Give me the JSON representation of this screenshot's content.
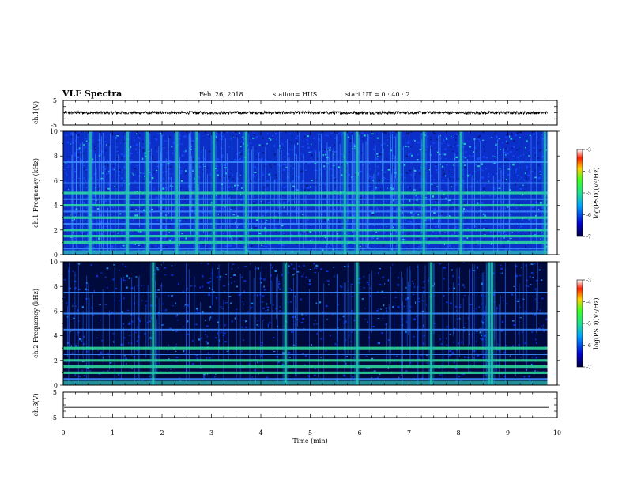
{
  "header": {
    "title": "VLF Spectra",
    "date": "Feb. 26, 2018",
    "station": "station= HUS",
    "start_ut": "start  UT  =   0 : 40 : 2"
  },
  "colors": {
    "background_dark": "#000030",
    "noise_blue": "#0a2fd0",
    "line_green": "#22e08a",
    "frame": "#000000"
  },
  "chart_data": [
    {
      "type": "line",
      "name": "ch.1 waveform",
      "ylabel": "ch.1(V)",
      "ylim": [
        -5,
        5
      ],
      "yticks": [
        "5",
        "-5"
      ],
      "xlim": [
        0,
        10
      ],
      "trace_level": 0,
      "noise_amplitude": 0.6,
      "trace_end_min": 9.8
    },
    {
      "type": "heatmap",
      "name": "ch.1 spectrogram",
      "ylabel": "ch.1 Frequency (kHz)",
      "ylim": [
        0,
        10
      ],
      "yticks": [
        "0",
        "2",
        "4",
        "6",
        "8",
        "10"
      ],
      "xlim": [
        0,
        10
      ],
      "data_end_min": 9.8,
      "horizontal_lines_khz": [
        0.5,
        1.0,
        1.5,
        2.0,
        2.5,
        3.0,
        3.5,
        4.0,
        4.5,
        5.0,
        5.8,
        7.5
      ],
      "strong_lines_khz": [
        1.0,
        1.5,
        2.0,
        3.0,
        4.0,
        5.0
      ],
      "vertical_bursts_min": [
        0.55,
        1.3,
        1.7,
        2.3,
        2.7,
        3.05,
        3.7,
        5.7,
        5.95,
        6.8,
        7.3,
        8.05,
        9.75
      ],
      "colorbar": {
        "label": "log(PSD)(V²/Hz)",
        "range": [
          -7,
          -3
        ],
        "ticks": [
          "-3",
          "-4",
          "-5",
          "-6",
          "-7"
        ]
      }
    },
    {
      "type": "heatmap",
      "name": "ch.2 spectrogram",
      "ylabel": "ch.2 Frequency (kHz)",
      "ylim": [
        0,
        10
      ],
      "yticks": [
        "0",
        "2",
        "4",
        "6",
        "8",
        "10"
      ],
      "xlim": [
        0,
        10
      ],
      "data_end_min": 9.8,
      "horizontal_lines_khz": [
        0.5,
        1.0,
        1.5,
        2.0,
        2.5,
        3.0,
        4.5,
        5.8,
        7.5
      ],
      "strong_lines_khz": [
        1.0,
        1.5,
        2.0,
        3.0
      ],
      "vertical_bursts_min": [
        1.82,
        4.5,
        5.95,
        7.45,
        8.62,
        8.68
      ],
      "colorbar": {
        "label": "log(PSD)(V²/Hz)",
        "range": [
          -7,
          -3
        ],
        "ticks": [
          "-3",
          "-4",
          "-5",
          "-6",
          "-7"
        ]
      }
    },
    {
      "type": "line",
      "name": "ch.3 waveform",
      "ylabel": "ch.3(V)",
      "ylim": [
        -5,
        5
      ],
      "yticks": [
        "5",
        "-5"
      ],
      "xlim": [
        0,
        10
      ],
      "trace_level": -1.0,
      "noise_amplitude": 0
    }
  ],
  "xaxis": {
    "label": "Time  (min)",
    "ticks": [
      "0",
      "1",
      "2",
      "3",
      "4",
      "5",
      "6",
      "7",
      "8",
      "9",
      "10"
    ]
  }
}
